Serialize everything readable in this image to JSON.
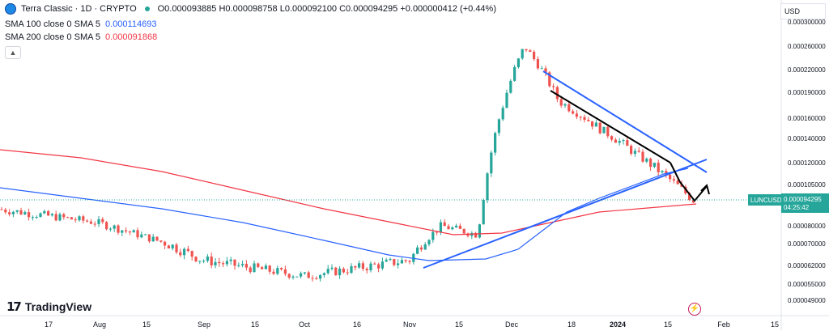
{
  "header": {
    "symbol_title": "Terra Classic · 1D · CRYPTO",
    "ohlc": "O0.000093885 H0.000098758 L0.000092100 C0.000094295 +0.000000412 (+0.44%)",
    "sma100_label": "SMA 100 close 0 SMA 5",
    "sma100_value": "0.000114693",
    "sma200_label": "SMA 200 close 0 SMA 5",
    "sma200_value": "0.000091868",
    "collapse_icon": "chevron-up-icon"
  },
  "currency": "USD",
  "brand": "TradingView",
  "colors": {
    "up": "#26a69a",
    "down": "#ef5350",
    "sma100": "#2962ff",
    "sma200": "#f23645",
    "trend": "#2962ff",
    "arrow": "#000000",
    "last_price": "#26a69a"
  },
  "chart_data": {
    "type": "candlestick",
    "symbol": "LUNCUSD",
    "interval": "1D",
    "last_price_label": "0.000094295",
    "countdown": "04:25:42",
    "ylim": [
      4.7e-05,
      0.000302
    ],
    "y_ticks": [
      "0.000300000",
      "0.000260000",
      "0.000220000",
      "0.000190000",
      "0.000160000",
      "0.000140000",
      "0.000120000",
      "0.000105000",
      "0.000080000",
      "0.000070000",
      "0.000062000",
      "0.000055000",
      "0.000049000"
    ],
    "x_ticks": [
      "17",
      "Aug",
      "15",
      "Sep",
      "15",
      "Oct",
      "16",
      "Nov",
      "15",
      "Dec",
      "18",
      "2024",
      "15",
      "Feb",
      "15"
    ],
    "candles_summary": [
      {
        "period": "Jul",
        "close": 9e-05
      },
      {
        "period": "Aug",
        "close": 8.2e-05
      },
      {
        "period": "Sep",
        "close": 6.4e-05
      },
      {
        "period": "Oct",
        "close": 5.8e-05
      },
      {
        "period": "Nov",
        "close": 6.4e-05
      },
      {
        "period": "mid-Nov",
        "close": 8e-05
      },
      {
        "period": "late-Nov",
        "close": 7.5e-05
      },
      {
        "period": "early-Dec",
        "close": 0.00026
      },
      {
        "period": "mid-Dec",
        "close": 0.00018
      },
      {
        "period": "late-Dec",
        "close": 0.00015
      },
      {
        "period": "Jan",
        "close": 0.000125
      },
      {
        "period": "mid-Jan",
        "close": 0.000105
      },
      {
        "period": "late-Jan",
        "close": 9.4e-05
      }
    ],
    "series": [
      {
        "name": "SMA 100 close 0 SMA 5",
        "last": 0.000114693
      },
      {
        "name": "SMA 200 close 0 SMA 5",
        "last": 9.1868e-05
      }
    ]
  }
}
